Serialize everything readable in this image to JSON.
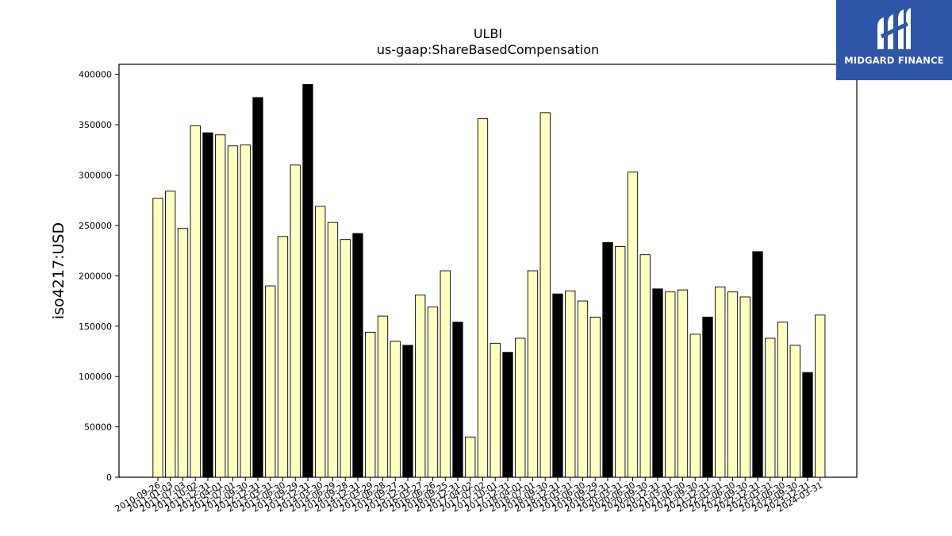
{
  "chart_data": {
    "type": "bar",
    "title": "ULBI",
    "subtitle": "us-gaap:ShareBasedCompensation",
    "ylabel": "iso4217:USD",
    "xlabel": "",
    "ylim": [
      0,
      410000
    ],
    "yticks": [
      0,
      50000,
      100000,
      150000,
      200000,
      250000,
      300000,
      350000,
      400000
    ],
    "colors": {
      "normal": "#ffffc0",
      "highlight": "#000000",
      "edge": "#000000"
    },
    "categories": [
      "2010-09-26",
      "2011-01-03",
      "2011-07-03",
      "2011-10-02",
      "2011-12-31",
      "2012-04-01",
      "2012-07-01",
      "2012-09-30",
      "2012-12-31",
      "2013-03-31",
      "2013-06-30",
      "2013-09-29",
      "2013-12-31",
      "2014-03-30",
      "2014-06-29",
      "2014-09-28",
      "2014-12-31",
      "2015-03-29",
      "2015-06-28",
      "2015-09-27",
      "2015-12-31",
      "2016-03-27",
      "2016-06-26",
      "2016-09-25",
      "2016-12-31",
      "2017-04-02",
      "2017-07-02",
      "2017-10-01",
      "2017-12-31",
      "2018-04-01",
      "2018-07-01",
      "2018-09-30",
      "2018-12-31",
      "2019-03-31",
      "2019-06-30",
      "2019-09-29",
      "2019-12-31",
      "2020-03-31",
      "2020-06-30",
      "2020-09-30",
      "2020-12-31",
      "2021-03-31",
      "2021-06-30",
      "2021-09-30",
      "2021-12-31",
      "2022-03-31",
      "2022-06-30",
      "2022-09-30",
      "2022-12-31",
      "2023-03-31",
      "2023-06-30",
      "2023-09-30",
      "2023-12-31",
      "2024-03-31"
    ],
    "values": [
      277000,
      284000,
      247000,
      349000,
      342000,
      340000,
      329000,
      330000,
      377000,
      190000,
      239000,
      310000,
      390000,
      269000,
      253000,
      236000,
      242000,
      144000,
      160000,
      135000,
      131000,
      181000,
      169000,
      205000,
      154000,
      40000,
      356000,
      133000,
      124000,
      138000,
      205000,
      362000,
      182000,
      185000,
      175000,
      159000,
      233000,
      229000,
      303000,
      221000,
      187000,
      184000,
      186000,
      142000,
      159000,
      189000,
      184000,
      179000,
      224000,
      138000,
      154000,
      131000,
      104000,
      161000
    ],
    "highlight": [
      false,
      false,
      false,
      false,
      true,
      false,
      false,
      false,
      true,
      false,
      false,
      false,
      true,
      false,
      false,
      false,
      true,
      false,
      false,
      false,
      true,
      false,
      false,
      false,
      true,
      false,
      false,
      false,
      true,
      false,
      false,
      false,
      true,
      false,
      false,
      false,
      true,
      false,
      false,
      false,
      true,
      false,
      false,
      false,
      true,
      false,
      false,
      false,
      true,
      false,
      false,
      false,
      true,
      false
    ]
  },
  "logo": {
    "text": "MIDGARD FINANCE",
    "icon": "midgard-m-logo-icon",
    "background": "#2d55a8"
  }
}
